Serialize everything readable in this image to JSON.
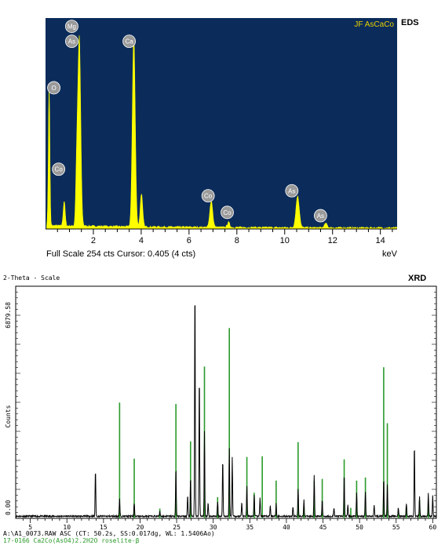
{
  "chart_data": [
    {
      "type": "line",
      "tag": "EDS",
      "legend_text": "JF AsCaCo",
      "footer_left": "Full Scale 254 cts Cursor: 0.405  (4 cts)",
      "xlabel": "keV",
      "xlim": [
        0,
        14.7
      ],
      "ylim": [
        0,
        254
      ],
      "x_ticks": [
        2,
        4,
        6,
        8,
        10,
        12,
        14
      ],
      "colors": {
        "background": "#0b2c5a",
        "spectrum": "#ffff00",
        "label_bubble": "#9a9a9a"
      },
      "peaks": [
        {
          "x": 0.15,
          "y": 170,
          "w": 0.03
        },
        {
          "x": 0.78,
          "y": 30,
          "w": 0.04
        },
        {
          "x": 1.3,
          "y": 58,
          "w": 0.04
        },
        {
          "x": 1.41,
          "y": 228,
          "w": 0.06
        },
        {
          "x": 3.69,
          "y": 228,
          "w": 0.06
        },
        {
          "x": 4.01,
          "y": 40,
          "w": 0.05
        },
        {
          "x": 6.93,
          "y": 32,
          "w": 0.06
        },
        {
          "x": 7.65,
          "y": 6,
          "w": 0.05
        },
        {
          "x": 10.54,
          "y": 38,
          "w": 0.07
        },
        {
          "x": 11.72,
          "y": 5,
          "w": 0.06
        }
      ],
      "element_labels": [
        {
          "text": "O",
          "x": 0.15,
          "y": 170
        },
        {
          "text": "Co",
          "x": 0.35,
          "y": 72
        },
        {
          "text": "Mg",
          "x": 0.9,
          "y": 244
        },
        {
          "text": "As",
          "x": 0.9,
          "y": 226
        },
        {
          "text": "Ca",
          "x": 3.3,
          "y": 226
        },
        {
          "text": "Co",
          "x": 6.6,
          "y": 40
        },
        {
          "text": "Co",
          "x": 7.4,
          "y": 20
        },
        {
          "text": "As",
          "x": 10.1,
          "y": 46
        },
        {
          "text": "As",
          "x": 11.3,
          "y": 16
        }
      ]
    },
    {
      "type": "line",
      "tag": "XRD",
      "title": "2-Theta - Scale",
      "ylabel": "Counts",
      "y_tick_labels": [
        "0.00",
        "6879.58"
      ],
      "ylim": [
        0,
        6879.58
      ],
      "xlim": [
        3,
        60.5
      ],
      "x_ticks": [
        5,
        10,
        15,
        20,
        25,
        30,
        35,
        40,
        45,
        50,
        55,
        60
      ],
      "footer_lines": [
        "A:\\A1_0073.RAW ASC (CT: 50.2s, SS:0.017dg, WL: 1.5406Ao)",
        "17-0166   Ca2Co(AsO4)2.2H2O  roselite-β"
      ],
      "colors": {
        "pattern": "#000000",
        "reference": "#2a9a2a",
        "footer_ref": "#2a9a2a"
      },
      "measured_peaks": [
        {
          "x": 13.9,
          "y": 1370
        },
        {
          "x": 17.2,
          "y": 520
        },
        {
          "x": 19.2,
          "y": 390
        },
        {
          "x": 22.7,
          "y": 160
        },
        {
          "x": 24.9,
          "y": 1450
        },
        {
          "x": 26.5,
          "y": 620
        },
        {
          "x": 26.9,
          "y": 1150
        },
        {
          "x": 27.5,
          "y": 6879
        },
        {
          "x": 28.1,
          "y": 4200
        },
        {
          "x": 28.8,
          "y": 2500
        },
        {
          "x": 29.3,
          "y": 420
        },
        {
          "x": 30.6,
          "y": 430
        },
        {
          "x": 31.3,
          "y": 1700
        },
        {
          "x": 32.2,
          "y": 2000
        },
        {
          "x": 32.6,
          "y": 1750
        },
        {
          "x": 33.9,
          "y": 430
        },
        {
          "x": 34.6,
          "y": 900
        },
        {
          "x": 35.6,
          "y": 650
        },
        {
          "x": 36.4,
          "y": 560
        },
        {
          "x": 37.8,
          "y": 330
        },
        {
          "x": 38.6,
          "y": 380
        },
        {
          "x": 40.9,
          "y": 270
        },
        {
          "x": 41.6,
          "y": 820
        },
        {
          "x": 42.4,
          "y": 480
        },
        {
          "x": 43.8,
          "y": 1230
        },
        {
          "x": 44.9,
          "y": 480
        },
        {
          "x": 46.5,
          "y": 240
        },
        {
          "x": 47.9,
          "y": 1250
        },
        {
          "x": 48.4,
          "y": 330
        },
        {
          "x": 49.6,
          "y": 690
        },
        {
          "x": 50.8,
          "y": 730
        },
        {
          "x": 52.0,
          "y": 340
        },
        {
          "x": 53.3,
          "y": 1100
        },
        {
          "x": 53.8,
          "y": 960
        },
        {
          "x": 55.3,
          "y": 260
        },
        {
          "x": 56.4,
          "y": 380
        },
        {
          "x": 57.5,
          "y": 2130
        },
        {
          "x": 58.2,
          "y": 570
        },
        {
          "x": 59.4,
          "y": 670
        },
        {
          "x": 60.0,
          "y": 610
        }
      ],
      "reference_peaks": [
        {
          "x": 17.2,
          "y": 3430
        },
        {
          "x": 19.2,
          "y": 1770
        },
        {
          "x": 22.7,
          "y": 290
        },
        {
          "x": 24.9,
          "y": 3390
        },
        {
          "x": 26.9,
          "y": 2280
        },
        {
          "x": 28.8,
          "y": 4500
        },
        {
          "x": 30.6,
          "y": 630
        },
        {
          "x": 32.2,
          "y": 5640
        },
        {
          "x": 34.6,
          "y": 1820
        },
        {
          "x": 35.6,
          "y": 760
        },
        {
          "x": 36.7,
          "y": 1840
        },
        {
          "x": 38.6,
          "y": 1120
        },
        {
          "x": 41.6,
          "y": 2260
        },
        {
          "x": 42.4,
          "y": 370
        },
        {
          "x": 43.8,
          "y": 1110
        },
        {
          "x": 44.9,
          "y": 1170
        },
        {
          "x": 47.9,
          "y": 1750
        },
        {
          "x": 48.8,
          "y": 310
        },
        {
          "x": 49.6,
          "y": 1120
        },
        {
          "x": 50.8,
          "y": 1210
        },
        {
          "x": 53.3,
          "y": 4480
        },
        {
          "x": 53.8,
          "y": 2820
        },
        {
          "x": 55.3,
          "y": 240
        },
        {
          "x": 56.4,
          "y": 340
        },
        {
          "x": 58.2,
          "y": 540
        },
        {
          "x": 59.4,
          "y": 380
        }
      ]
    }
  ]
}
